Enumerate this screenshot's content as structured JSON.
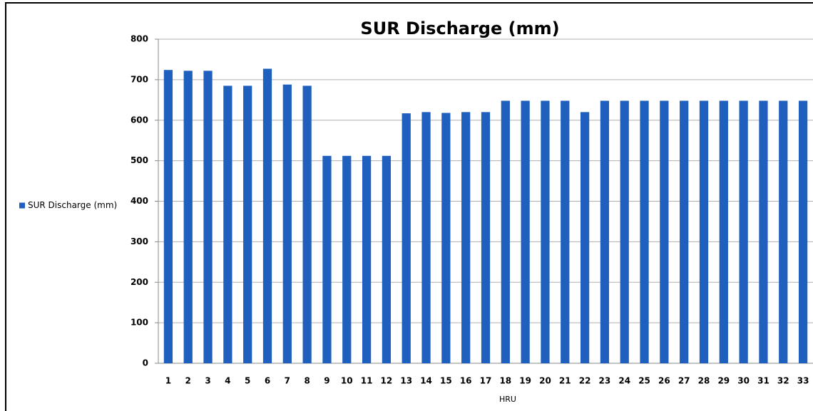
{
  "chart_data": {
    "type": "bar",
    "title": "SUR Discharge (mm)",
    "x_label": "HRU",
    "categories": [
      "1",
      "2",
      "3",
      "4",
      "5",
      "6",
      "7",
      "8",
      "9",
      "10",
      "11",
      "12",
      "13",
      "14",
      "15",
      "16",
      "17",
      "18",
      "19",
      "20",
      "21",
      "22",
      "23",
      "24",
      "25",
      "26",
      "27",
      "28",
      "29",
      "30",
      "31",
      "32",
      "33"
    ],
    "series": [
      {
        "name": "SUR Discharge (mm)",
        "color": "#1f5fbe",
        "values": [
          724,
          722,
          722,
          685,
          685,
          727,
          688,
          685,
          512,
          512,
          512,
          512,
          617,
          620,
          618,
          620,
          620,
          648,
          648,
          648,
          648,
          620,
          648,
          648,
          648,
          648,
          648,
          648,
          648,
          648,
          648,
          648,
          648
        ]
      }
    ],
    "ylim": [
      0,
      800
    ],
    "yticks": [
      0,
      100,
      200,
      300,
      400,
      500,
      600,
      700,
      800
    ],
    "grid": true,
    "legend": "left"
  }
}
